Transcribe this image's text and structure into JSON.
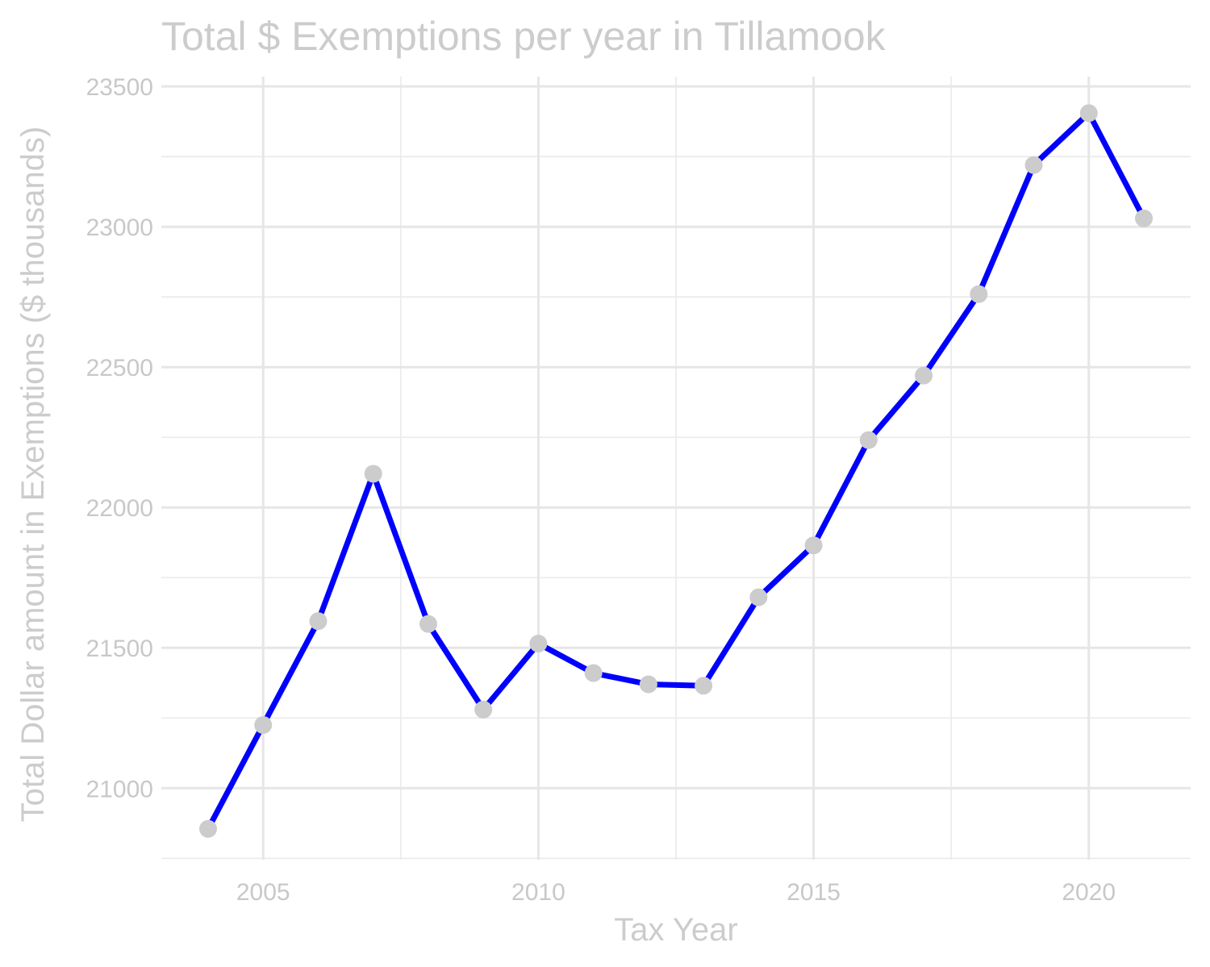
{
  "chart_data": {
    "type": "line",
    "title": "Total $ Exemptions per year in Tillamook",
    "xlabel": "Tax Year",
    "ylabel": "Total Dollar amount in Exemptions ($ thousands)",
    "x": [
      2004,
      2005,
      2006,
      2007,
      2008,
      2009,
      2010,
      2011,
      2012,
      2013,
      2014,
      2015,
      2016,
      2017,
      2018,
      2019,
      2020,
      2021
    ],
    "series": [
      {
        "values": [
          20855,
          21225,
          21595,
          22120,
          21585,
          21280,
          21515,
          21410,
          21370,
          21365,
          21680,
          21865,
          22240,
          22470,
          22760,
          23220,
          23405,
          23030
        ]
      }
    ],
    "xlim": [
      2003.15,
      2021.85
    ],
    "ylim": [
      20745,
      23535
    ],
    "x_ticks": [
      2005,
      2010,
      2015,
      2020
    ],
    "x_tick_labels": [
      "2005",
      "2010",
      "2015",
      "2020"
    ],
    "x_minor_ticks": [
      2007.5,
      2012.5,
      2017.5
    ],
    "y_ticks": [
      21000,
      21500,
      22000,
      22500,
      23000,
      23500
    ],
    "y_tick_labels": [
      "21000",
      "21500",
      "22000",
      "22500",
      "23000",
      "23500"
    ],
    "y_minor_ticks": [
      20750,
      21250,
      21750,
      22250,
      22750,
      23250
    ],
    "grid": true,
    "legend": "none",
    "colors": {
      "line": "#0000ff",
      "points": "#cccccc",
      "text": "#cccccc",
      "grid": "#e6e6e6"
    }
  }
}
